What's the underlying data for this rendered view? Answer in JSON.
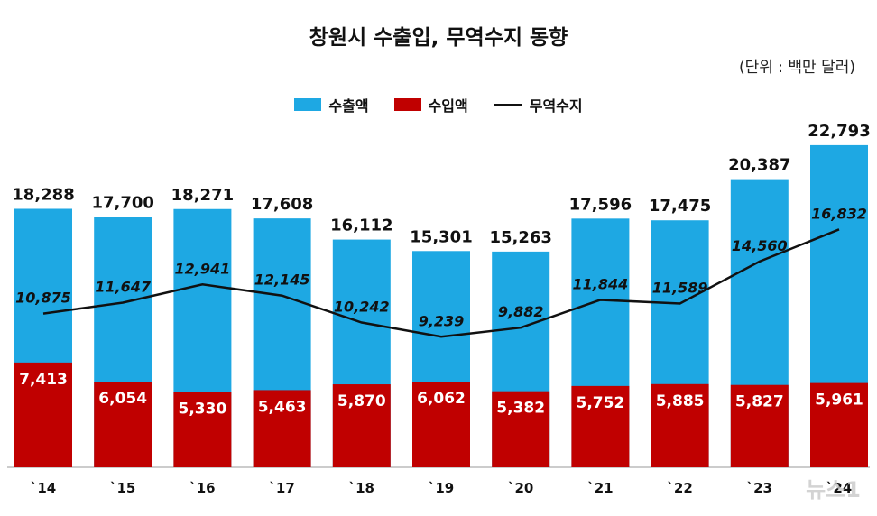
{
  "title": "창원시 수출입, 무역수지 동향",
  "unit_note": "(단위 : 백만 달러)",
  "legend": {
    "export": "수출액",
    "import": "수입액",
    "balance": "무역수지"
  },
  "watermark": "뉴스1",
  "colors": {
    "export": "#1ea8e3",
    "import": "#c00000",
    "balance": "#111111"
  },
  "chart_data": {
    "type": "bar",
    "stacked": false,
    "categories": [
      "`14",
      "`15",
      "`16",
      "`17",
      "`18",
      "`19",
      "`20",
      "`21",
      "`22",
      "`23",
      "`24"
    ],
    "series": [
      {
        "name": "수출액",
        "kind": "bar",
        "values": [
          18288,
          17700,
          18271,
          17608,
          16112,
          15301,
          15263,
          17596,
          17475,
          20387,
          22793
        ],
        "labels": [
          "18,288",
          "17,700",
          "18,271",
          "17,608",
          "16,112",
          "15,301",
          "15,263",
          "17,596",
          "17,475",
          "20,387",
          "22,793"
        ]
      },
      {
        "name": "수입액",
        "kind": "bar",
        "values": [
          7413,
          6054,
          5330,
          5463,
          5870,
          6062,
          5382,
          5752,
          5885,
          5827,
          5961
        ],
        "labels": [
          "7,413",
          "6,054",
          "5,330",
          "5,463",
          "5,870",
          "6,062",
          "5,382",
          "5,752",
          "5,885",
          "5,827",
          "5,961"
        ]
      },
      {
        "name": "무역수지",
        "kind": "line",
        "values": [
          10875,
          11647,
          12941,
          12145,
          10242,
          9239,
          9882,
          11844,
          11589,
          14560,
          16832
        ],
        "labels": [
          "10,875",
          "11,647",
          "12,941",
          "12,145",
          "10,242",
          "9,239",
          "9,882",
          "11,844",
          "11,589",
          "14,560",
          "16,832"
        ]
      }
    ],
    "ylim": [
      0,
      24000
    ],
    "grid": false,
    "legend_position": "top-center"
  }
}
